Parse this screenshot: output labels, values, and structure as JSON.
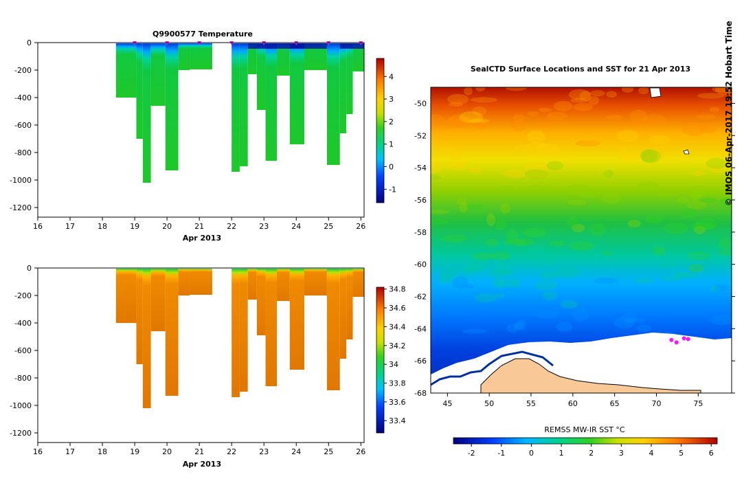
{
  "chart_data": [
    {
      "type": "heatmap",
      "title": "Q9900577  Temperature",
      "xlabel": "Apr 2013",
      "ylabel": "",
      "xlim": [
        16,
        26.1
      ],
      "ylim": [
        -1270,
        0
      ],
      "x_ticks": [
        "16",
        "17",
        "18",
        "19",
        "20",
        "21",
        "22",
        "23",
        "24",
        "25",
        "26"
      ],
      "y_ticks": [
        "0",
        "-200",
        "-400",
        "-600",
        "-800",
        "-1000",
        "-1200"
      ],
      "colorbar": {
        "min": -1.6,
        "max": 4.8,
        "ticks": [
          "4",
          "3",
          "2",
          "1",
          "0",
          "-1"
        ]
      },
      "profile_markers_x": [
        19.0,
        20.0,
        21.0,
        22.0,
        23.0,
        24.0,
        25.0,
        26.0
      ],
      "profiles": [
        {
          "x0": 18.42,
          "x1": 18.7,
          "max_depth": 400
        },
        {
          "x0": 18.7,
          "x1": 19.05,
          "max_depth": 400
        },
        {
          "x0": 19.05,
          "x1": 19.25,
          "max_depth": 700
        },
        {
          "x0": 19.25,
          "x1": 19.5,
          "max_depth": 1020
        },
        {
          "x0": 19.5,
          "x1": 19.95,
          "max_depth": 460
        },
        {
          "x0": 19.95,
          "x1": 20.35,
          "max_depth": 930
        },
        {
          "x0": 20.35,
          "x1": 20.7,
          "max_depth": 200
        },
        {
          "x0": 20.7,
          "x1": 21.4,
          "max_depth": 195
        },
        {
          "x0": 22.0,
          "x1": 22.25,
          "max_depth": 940
        },
        {
          "x0": 22.25,
          "x1": 22.5,
          "max_depth": 900
        },
        {
          "x0": 22.5,
          "x1": 22.78,
          "max_depth": 230
        },
        {
          "x0": 22.78,
          "x1": 23.05,
          "max_depth": 490
        },
        {
          "x0": 23.05,
          "x1": 23.4,
          "max_depth": 860
        },
        {
          "x0": 23.4,
          "x1": 23.8,
          "max_depth": 240
        },
        {
          "x0": 23.8,
          "x1": 24.25,
          "max_depth": 740
        },
        {
          "x0": 24.25,
          "x1": 24.95,
          "max_depth": 200
        },
        {
          "x0": 24.95,
          "x1": 25.35,
          "max_depth": 890
        },
        {
          "x0": 25.35,
          "x1": 25.55,
          "max_depth": 660
        },
        {
          "x0": 25.55,
          "x1": 25.75,
          "max_depth": 520
        },
        {
          "x0": 25.75,
          "x1": 26.1,
          "max_depth": 210
        }
      ]
    },
    {
      "type": "heatmap",
      "title": "",
      "xlabel": "Apr 2013",
      "ylabel": "",
      "xlim": [
        16,
        26.1
      ],
      "ylim": [
        -1270,
        0
      ],
      "x_ticks": [
        "16",
        "17",
        "18",
        "19",
        "20",
        "21",
        "22",
        "23",
        "24",
        "25",
        "26"
      ],
      "y_ticks": [
        "0",
        "-200",
        "-400",
        "-600",
        "-800",
        "-1000",
        "-1200"
      ],
      "colorbar": {
        "min": 33.27,
        "max": 34.82,
        "ticks": [
          "34.8",
          "34.6",
          "34.4",
          "34.2",
          "34",
          "33.8",
          "33.6",
          "33.4"
        ]
      }
    },
    {
      "type": "heatmap",
      "title": "SealCTD Surface Locations and SST for 21 Apr 2013",
      "xlabel": "",
      "ylabel": "",
      "xlim": [
        43,
        79
      ],
      "ylim": [
        -68,
        -49
      ],
      "x_ticks": [
        "45",
        "50",
        "55",
        "60",
        "65",
        "70",
        "75"
      ],
      "y_ticks": [
        "-50",
        "-52",
        "-54",
        "-56",
        "-58",
        "-60",
        "-62",
        "-64",
        "-66",
        "-68"
      ],
      "colorbar": {
        "label": "REMSS MW-IR SST °C",
        "min": -2.6,
        "max": 6.2,
        "ticks": [
          "-2",
          "-1",
          "0",
          "1",
          "2",
          "3",
          "4",
          "5",
          "6"
        ]
      },
      "seal_locations": [
        [
          71.8,
          -64.7
        ],
        [
          72.4,
          -64.85
        ],
        [
          73.3,
          -64.6
        ],
        [
          73.8,
          -64.65
        ]
      ]
    }
  ],
  "copyright": "© IMOS 06-Apr-2017 19:52 Hobart Time"
}
